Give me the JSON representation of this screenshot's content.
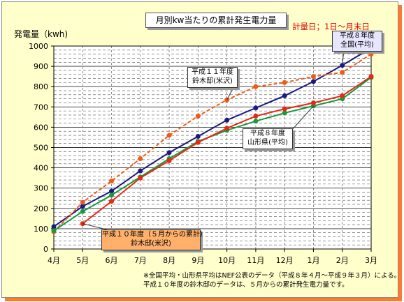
{
  "chart_data": {
    "type": "line",
    "title": "月別kw当たりの累計発生電力量",
    "subtitle": "計量日；1日～月末日",
    "ylabel": "発電量（kwh)",
    "xlabel": "",
    "categories": [
      "4月",
      "5月",
      "6月",
      "7月",
      "8月",
      "9月",
      "10月",
      "11月",
      "12月",
      "1月",
      "2月",
      "3月"
    ],
    "ylim": [
      0,
      1000
    ],
    "yticks": [
      "0",
      "100",
      "200",
      "300",
      "400",
      "500",
      "600",
      "700",
      "800",
      "900",
      "1000"
    ],
    "grid": true,
    "series": [
      {
        "name": "平成８年度 全国(平均)",
        "color": "#1a1a80",
        "dashed": false,
        "values": [
          110,
          210,
          285,
          385,
          475,
          555,
          635,
          695,
          755,
          825,
          905,
          990
        ]
      },
      {
        "name": "平成１１年度 鈴木邸(米沢)",
        "color": "#f05a14",
        "dashed": true,
        "values": [
          85,
          230,
          335,
          445,
          560,
          655,
          735,
          800,
          820,
          850,
          870,
          960
        ]
      },
      {
        "name": "平成８年度 山形県(平均)",
        "color": "#169a3c",
        "dashed": false,
        "values": [
          90,
          185,
          265,
          355,
          445,
          530,
          585,
          630,
          670,
          705,
          740,
          845
        ]
      },
      {
        "name": "平成１０年度（５月からの累計） 鈴木邸(米沢)",
        "color": "#e62814",
        "dashed": false,
        "values": [
          null,
          125,
          235,
          350,
          435,
          525,
          595,
          655,
          690,
          720,
          755,
          850
        ]
      }
    ],
    "callouts": [
      {
        "line1": "平成１１年度",
        "line2": "鈴木邸(米沢)"
      },
      {
        "line1": "平成８年度",
        "line2": "山形県(平均)"
      },
      {
        "line1": "平成８年度",
        "line2": "全国(平均)"
      },
      {
        "line1": "平成１０年度（５月からの累計）",
        "line2": "鈴木邸(米沢)"
      }
    ],
    "footnote": [
      "※全国平均・山形県平均はNEF公表のデータ（平成８年４月～平成９年３月）による。",
      "平成１０年度の鈴木邸のデータは、５月からの累計発生電力量です。"
    ]
  }
}
